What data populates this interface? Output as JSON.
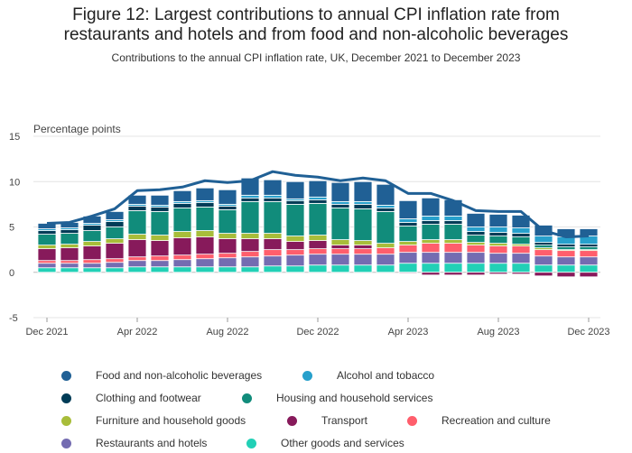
{
  "title_line1": "Figure 12: Largest contributions to annual CPI inflation rate from",
  "title_line2": "restaurants and hotels and from food and non-alcoholic beverages",
  "subtitle": "Contributions to the annual CPI inflation rate, UK, December 2021 to December 2023",
  "chart_data": {
    "type": "bar",
    "stacked": true,
    "ylabel": "Percentage points",
    "ylim": [
      -5,
      15
    ],
    "yticks": [
      -5,
      0,
      5,
      10,
      15
    ],
    "grid": true,
    "legend_position": "bottom",
    "x": [
      "Dec 2021",
      "Jan 2022",
      "Feb 2022",
      "Mar 2022",
      "Apr 2022",
      "May 2022",
      "Jun 2022",
      "Jul 2022",
      "Aug 2022",
      "Sep 2022",
      "Oct 2022",
      "Nov 2022",
      "Dec 2022",
      "Jan 2023",
      "Feb 2023",
      "Mar 2023",
      "Apr 2023",
      "May 2023",
      "Jun 2023",
      "Jul 2023",
      "Aug 2023",
      "Sep 2023",
      "Oct 2023",
      "Nov 2023",
      "Dec 2023"
    ],
    "xtick_labels": [
      "Dec 2021",
      "Apr 2022",
      "Aug 2022",
      "Dec 2022",
      "Apr 2023",
      "Aug 2023",
      "Dec 2023"
    ],
    "series": [
      {
        "name": "Other goods and services",
        "color": "#22d0b6",
        "values": [
          0.5,
          0.5,
          0.5,
          0.5,
          0.6,
          0.6,
          0.6,
          0.6,
          0.6,
          0.6,
          0.7,
          0.7,
          0.8,
          0.8,
          0.8,
          0.8,
          1.0,
          1.0,
          1.0,
          1.0,
          1.0,
          1.0,
          0.8,
          0.8,
          0.8
        ]
      },
      {
        "name": "Restaurants and hotels",
        "color": "#746cb1",
        "values": [
          0.5,
          0.5,
          0.5,
          0.6,
          0.7,
          0.7,
          0.8,
          0.9,
          1.0,
          1.1,
          1.1,
          1.2,
          1.2,
          1.2,
          1.2,
          1.2,
          1.2,
          1.2,
          1.2,
          1.2,
          1.1,
          1.1,
          1.0,
          0.9,
          0.9
        ]
      },
      {
        "name": "Recreation and culture",
        "color": "#ff5e6c",
        "values": [
          0.3,
          0.3,
          0.4,
          0.4,
          0.4,
          0.5,
          0.5,
          0.5,
          0.5,
          0.6,
          0.7,
          0.6,
          0.6,
          0.6,
          0.6,
          0.7,
          0.8,
          1.0,
          1.0,
          0.8,
          0.8,
          0.8,
          0.7,
          0.7,
          0.7
        ]
      },
      {
        "name": "Transport",
        "color": "#871a5b",
        "values": [
          1.3,
          1.4,
          1.5,
          1.7,
          1.9,
          1.7,
          1.9,
          1.9,
          1.6,
          1.4,
          1.2,
          0.9,
          0.9,
          0.4,
          0.4,
          0.0,
          -0.1,
          -0.3,
          -0.3,
          -0.3,
          -0.2,
          -0.2,
          -0.4,
          -0.5,
          -0.5
        ]
      },
      {
        "name": "Furniture and household goods",
        "color": "#a8bd3a",
        "values": [
          0.4,
          0.4,
          0.5,
          0.5,
          0.6,
          0.6,
          0.7,
          0.7,
          0.6,
          0.6,
          0.6,
          0.6,
          0.6,
          0.6,
          0.5,
          0.5,
          0.4,
          0.4,
          0.4,
          0.3,
          0.3,
          0.2,
          0.2,
          0.1,
          0.1
        ]
      },
      {
        "name": "Housing and household services",
        "color": "#118c7b",
        "values": [
          1.2,
          1.2,
          1.2,
          1.3,
          2.6,
          2.6,
          2.6,
          2.6,
          2.6,
          3.5,
          3.5,
          3.5,
          3.5,
          3.5,
          3.5,
          3.5,
          1.7,
          1.7,
          1.7,
          0.8,
          0.8,
          0.8,
          0.3,
          0.3,
          0.3
        ]
      },
      {
        "name": "Clothing and footwear",
        "color": "#003c57",
        "values": [
          0.4,
          0.4,
          0.6,
          0.6,
          0.5,
          0.5,
          0.5,
          0.5,
          0.4,
          0.4,
          0.4,
          0.4,
          0.4,
          0.4,
          0.5,
          0.4,
          0.4,
          0.4,
          0.4,
          0.4,
          0.4,
          0.4,
          0.3,
          0.3,
          0.3
        ]
      },
      {
        "name": "Alcohol and tobacco",
        "color": "#27a0cc",
        "values": [
          0.2,
          0.2,
          0.2,
          0.2,
          0.2,
          0.2,
          0.2,
          0.2,
          0.2,
          0.3,
          0.3,
          0.2,
          0.3,
          0.3,
          0.3,
          0.3,
          0.4,
          0.5,
          0.5,
          0.5,
          0.6,
          0.6,
          0.7,
          0.8,
          0.9
        ]
      },
      {
        "name": "Food and non-alcoholic beverages",
        "color": "#206095",
        "values": [
          0.6,
          0.6,
          0.8,
          0.9,
          1.0,
          1.1,
          1.2,
          1.4,
          1.6,
          1.9,
          1.7,
          1.9,
          1.8,
          2.1,
          2.2,
          2.3,
          2.0,
          2.0,
          1.8,
          1.5,
          1.4,
          1.4,
          1.2,
          0.9,
          0.8
        ]
      }
    ],
    "total": {
      "name": "CPI annual rate",
      "color": "#206095",
      "values": [
        5.4,
        5.5,
        6.2,
        7.0,
        9.0,
        9.1,
        9.4,
        10.1,
        9.9,
        10.1,
        11.1,
        10.7,
        10.5,
        10.1,
        10.4,
        10.1,
        8.7,
        8.7,
        7.9,
        6.8,
        6.7,
        6.7,
        4.6,
        3.9,
        4.0
      ]
    }
  },
  "legend": [
    {
      "label": "Food and non-alcoholic beverages",
      "color": "#206095"
    },
    {
      "label": "Alcohol and tobacco",
      "color": "#27a0cc"
    },
    {
      "label": "Clothing and footwear",
      "color": "#003c57"
    },
    {
      "label": "Housing and household services",
      "color": "#118c7b"
    },
    {
      "label": "Furniture and household goods",
      "color": "#a8bd3a"
    },
    {
      "label": "Transport",
      "color": "#871a5b"
    },
    {
      "label": "Recreation and culture",
      "color": "#ff5e6c"
    },
    {
      "label": "Restaurants and hotels",
      "color": "#746cb1"
    },
    {
      "label": "Other goods and services",
      "color": "#22d0b6"
    }
  ]
}
